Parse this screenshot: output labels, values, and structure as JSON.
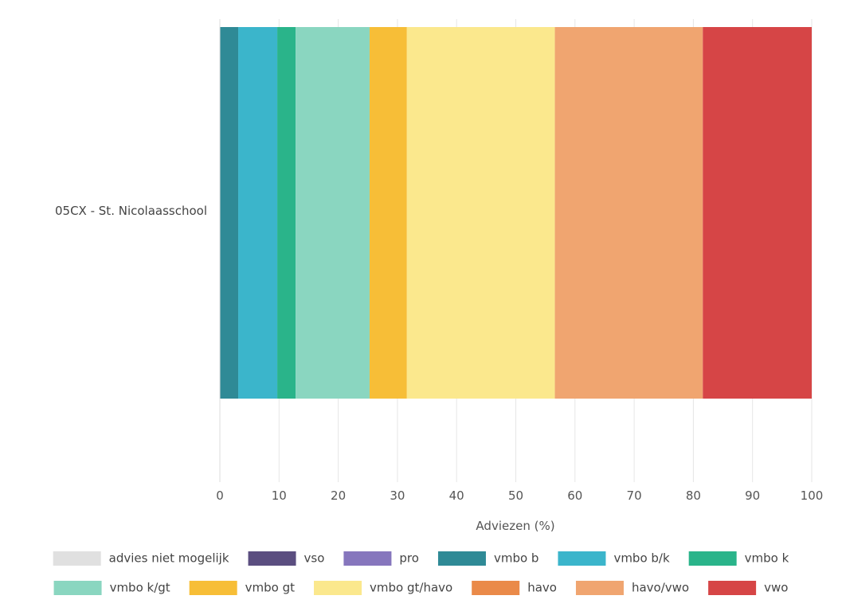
{
  "chart_data": {
    "type": "bar",
    "orientation": "horizontal",
    "stacked": true,
    "categories": [
      "05CX - St. Nicolaasschool"
    ],
    "series": [
      {
        "name": "advies niet mogelijk",
        "values": [
          0
        ],
        "color": "#e0e0e0"
      },
      {
        "name": "vso",
        "values": [
          0
        ],
        "color": "#5b4e80"
      },
      {
        "name": "pro",
        "values": [
          0
        ],
        "color": "#8676bd"
      },
      {
        "name": "vmbo b",
        "values": [
          3.1
        ],
        "color": "#2f8a96"
      },
      {
        "name": "vmbo b/k",
        "values": [
          6.6
        ],
        "color": "#3bb5cb"
      },
      {
        "name": "vmbo k",
        "values": [
          3.1
        ],
        "color": "#2ab48a"
      },
      {
        "name": "vmbo k/gt",
        "values": [
          12.5
        ],
        "color": "#8ad6c0"
      },
      {
        "name": "vmbo gt",
        "values": [
          6.3
        ],
        "color": "#f7be37"
      },
      {
        "name": "vmbo gt/havo",
        "values": [
          25.0
        ],
        "color": "#fbe88d"
      },
      {
        "name": "havo",
        "values": [
          0
        ],
        "color": "#ea8a49"
      },
      {
        "name": "havo/vwo",
        "values": [
          25.0
        ],
        "color": "#f0a570"
      },
      {
        "name": "vwo",
        "values": [
          18.4
        ],
        "color": "#d64546"
      }
    ],
    "xlabel": "Adviezen (%)",
    "xlim": [
      0,
      100
    ],
    "xticks": [
      0,
      10,
      20,
      30,
      40,
      50,
      60,
      70,
      80,
      90,
      100
    ],
    "grid": true,
    "legend": "bottom"
  }
}
